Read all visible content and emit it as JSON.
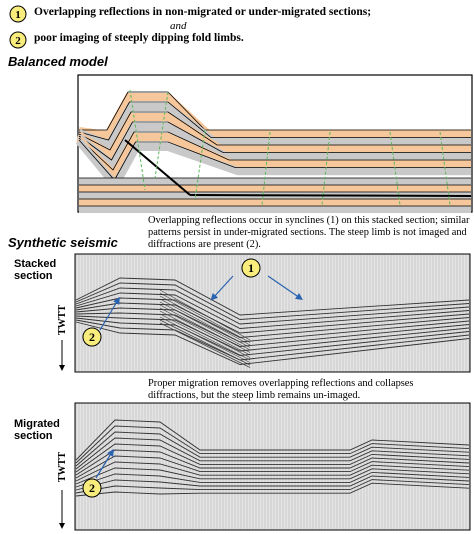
{
  "legend": {
    "items": [
      {
        "marker": "1",
        "text": "Overlapping reflections in non-migrated or under-migrated sections;"
      },
      {
        "marker": "2",
        "text": "poor imaging of steeply dipping fold limbs."
      }
    ],
    "connector": "and"
  },
  "balanced_model": {
    "title": "Balanced model"
  },
  "caption_stacked": "Overlapping reflections occur in synclines (1) on this stacked section; similar patterns persist in under-migrated sections. The steep limb is not imaged and diffractions are present (2).",
  "synthetic_seismic": {
    "title": "Synthetic seismic"
  },
  "stacked_section": {
    "label": "Stacked section",
    "axis_label": "TWTT",
    "markers": [
      "1",
      "2"
    ]
  },
  "caption_migrated": "Proper migration removes overlapping reflections and collapses diffractions, but the steep limb remains un-imaged.",
  "migrated_section": {
    "label": "Migrated section",
    "axis_label": "TWTT",
    "markers": [
      "2"
    ]
  }
}
